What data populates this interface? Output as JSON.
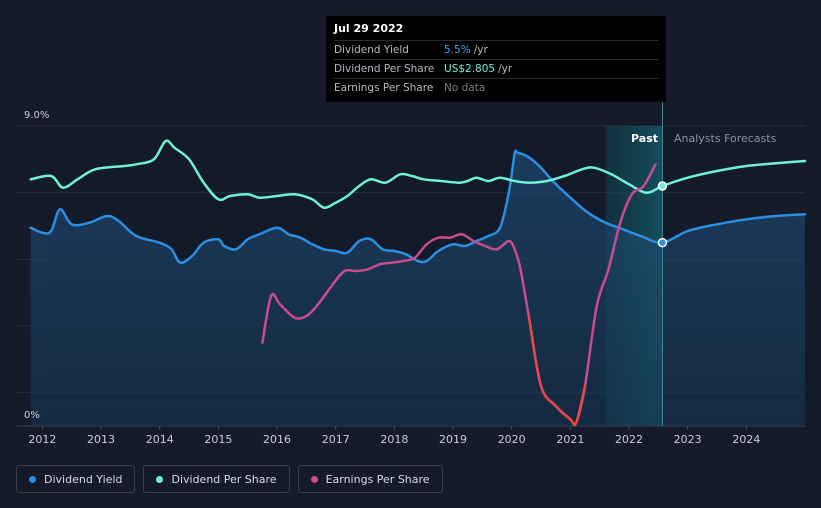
{
  "tooltip": {
    "date": "Jul 29 2022",
    "rows": [
      {
        "label": "Dividend Yield",
        "value": "5.5%",
        "unit": "/yr"
      },
      {
        "label": "Dividend Per Share",
        "value": "US$2.805",
        "unit": "/yr"
      },
      {
        "label": "Earnings Per Share",
        "value": "No data",
        "unit": ""
      }
    ]
  },
  "labels": {
    "past": "Past",
    "forecast": "Analysts Forecasts"
  },
  "legend": [
    {
      "label": "Dividend Yield",
      "color": "#2d8ee0"
    },
    {
      "label": "Dividend Per Share",
      "color": "#71f0d7"
    },
    {
      "label": "Earnings Per Share",
      "color": "#c94c8f"
    }
  ],
  "chart_data": {
    "type": "line",
    "title": "",
    "xlabel": "",
    "ylabel": "",
    "y_tick_labels": [
      "9.0%",
      "0%"
    ],
    "ylim": [
      0,
      9
    ],
    "xlim": [
      2011.8,
      2025.0
    ],
    "x_ticks": [
      2012,
      2013,
      2014,
      2015,
      2016,
      2017,
      2018,
      2019,
      2020,
      2021,
      2022,
      2023,
      2024
    ],
    "today": 2022.57,
    "forecast_band_start": 2021.6,
    "series": [
      {
        "name": "Dividend Yield",
        "color": "#2d8ee0",
        "fill": true,
        "x": [
          2011.8,
          2012.0,
          2012.15,
          2012.3,
          2012.5,
          2012.8,
          2013.1,
          2013.3,
          2013.6,
          2014.0,
          2014.2,
          2014.35,
          2014.55,
          2014.75,
          2015.0,
          2015.1,
          2015.3,
          2015.5,
          2015.7,
          2016.0,
          2016.2,
          2016.4,
          2016.6,
          2016.8,
          2017.0,
          2017.2,
          2017.4,
          2017.6,
          2017.8,
          2018.0,
          2018.2,
          2018.4,
          2018.55,
          2018.75,
          2019.0,
          2019.2,
          2019.4,
          2019.6,
          2019.8,
          2019.95,
          2020.05,
          2020.1,
          2020.3,
          2020.5,
          2020.7,
          2021.0,
          2021.3,
          2021.6,
          2021.9,
          2022.2,
          2022.57,
          2023.0,
          2023.5,
          2024.0,
          2024.5,
          2025.0
        ],
        "y": [
          5.95,
          5.8,
          5.85,
          6.5,
          6.05,
          6.1,
          6.3,
          6.15,
          5.7,
          5.5,
          5.3,
          4.9,
          5.1,
          5.5,
          5.6,
          5.4,
          5.3,
          5.6,
          5.75,
          5.95,
          5.75,
          5.65,
          5.45,
          5.3,
          5.25,
          5.2,
          5.55,
          5.6,
          5.3,
          5.25,
          5.15,
          4.95,
          4.95,
          5.25,
          5.45,
          5.4,
          5.55,
          5.7,
          5.95,
          7.0,
          8.15,
          8.2,
          8.05,
          7.75,
          7.35,
          6.85,
          6.4,
          6.1,
          5.9,
          5.7,
          5.5,
          5.85,
          6.05,
          6.2,
          6.3,
          6.35
        ]
      },
      {
        "name": "Dividend Per Share",
        "color": "#71f0d7",
        "fill": false,
        "x": [
          2011.8,
          2012.15,
          2012.35,
          2012.6,
          2012.9,
          2013.4,
          2013.6,
          2013.9,
          2014.1,
          2014.25,
          2014.5,
          2014.75,
          2015.0,
          2015.2,
          2015.5,
          2015.7,
          2016.0,
          2016.3,
          2016.6,
          2016.8,
          2017.0,
          2017.2,
          2017.4,
          2017.6,
          2017.85,
          2018.1,
          2018.3,
          2018.5,
          2018.8,
          2019.1,
          2019.25,
          2019.4,
          2019.6,
          2019.8,
          2020.05,
          2020.3,
          2020.6,
          2020.9,
          2021.2,
          2021.4,
          2021.7,
          2022.0,
          2022.3,
          2022.57,
          2023.0,
          2023.5,
          2024.0,
          2024.5,
          2025.0
        ],
        "y": [
          7.4,
          7.5,
          7.15,
          7.4,
          7.7,
          7.8,
          7.85,
          8.0,
          8.55,
          8.35,
          8.0,
          7.3,
          6.8,
          6.9,
          6.95,
          6.85,
          6.9,
          6.95,
          6.8,
          6.55,
          6.7,
          6.9,
          7.2,
          7.4,
          7.3,
          7.55,
          7.5,
          7.4,
          7.35,
          7.3,
          7.35,
          7.45,
          7.35,
          7.45,
          7.35,
          7.3,
          7.35,
          7.5,
          7.7,
          7.75,
          7.55,
          7.25,
          7.0,
          7.2,
          7.45,
          7.65,
          7.8,
          7.88,
          7.95
        ]
      },
      {
        "name": "Earnings Per Share",
        "color": "#c94c8f",
        "fill": false,
        "x": [
          2015.75,
          2015.9,
          2016.05,
          2016.3,
          2016.5,
          2016.7,
          2016.95,
          2017.15,
          2017.35,
          2017.55,
          2017.75,
          2017.95,
          2018.15,
          2018.35,
          2018.55,
          2018.75,
          2018.95,
          2019.15,
          2019.35,
          2019.55,
          2019.75,
          2019.95,
          2020.05,
          2020.15,
          2020.3,
          2020.5,
          2020.75,
          2021.0,
          2021.1,
          2021.25,
          2021.45,
          2021.65,
          2021.85,
          2022.05,
          2022.25,
          2022.45
        ],
        "y": [
          2.5,
          3.9,
          3.65,
          3.25,
          3.3,
          3.65,
          4.25,
          4.65,
          4.65,
          4.7,
          4.85,
          4.9,
          4.95,
          5.05,
          5.45,
          5.65,
          5.65,
          5.75,
          5.55,
          5.4,
          5.3,
          5.55,
          5.3,
          4.7,
          3.2,
          1.2,
          0.6,
          0.2,
          0.1,
          1.2,
          3.6,
          4.7,
          6.1,
          6.95,
          7.2,
          7.85
        ]
      }
    ]
  }
}
